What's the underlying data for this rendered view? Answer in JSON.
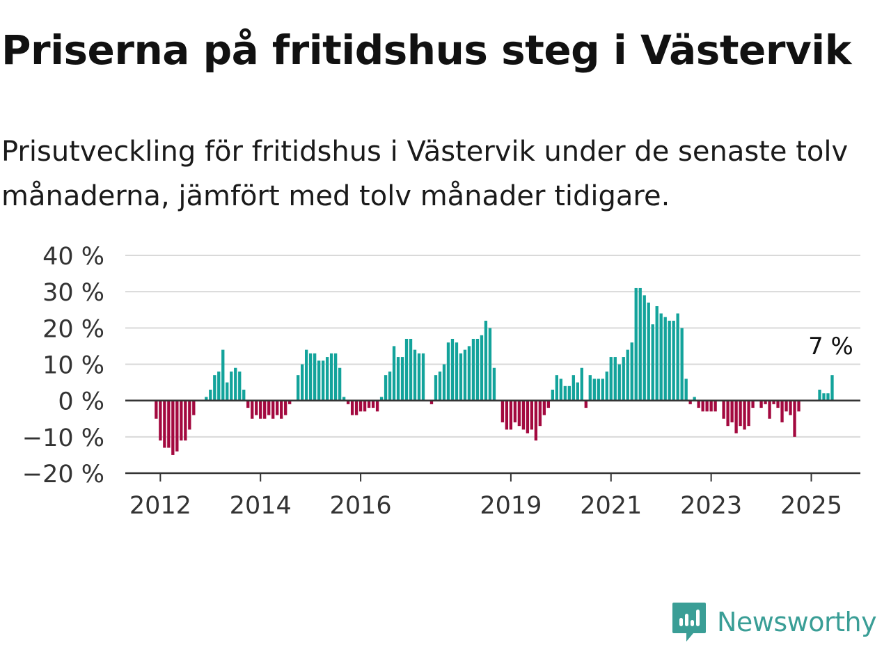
{
  "title": "Priserna på fritidshus steg i Västervik",
  "subtitle": "Prisutveckling för fritidshus i Västervik under de senaste tolv månaderna, jämfört med tolv månader tidigare.",
  "brand": {
    "name": "Newsworthy",
    "color": "#3a9e96",
    "icon": "newsworthy-logo-icon"
  },
  "colors": {
    "positive": "#13a39b",
    "negative": "#a3093f",
    "grid": "#d9d9d9",
    "axis": "#333333"
  },
  "chart_data": {
    "type": "bar",
    "ylim": [
      -20,
      40
    ],
    "yticks": [
      40,
      30,
      20,
      10,
      0,
      -10,
      -20
    ],
    "ytick_labels": [
      "40 %",
      "30 %",
      "20 %",
      "10 %",
      "0 %",
      "−10 %",
      "−20 %"
    ],
    "xticks": [
      {
        "label": "2012",
        "x": 2012.0
      },
      {
        "label": "2014",
        "x": 2014.0
      },
      {
        "label": "2016",
        "x": 2016.0
      },
      {
        "label": "2019",
        "x": 2019.0
      },
      {
        "label": "2021",
        "x": 2021.0
      },
      {
        "label": "2023",
        "x": 2023.0
      },
      {
        "label": "2025",
        "x": 2025.0
      }
    ],
    "x_start": 2011.3,
    "x_end": 2025.98,
    "start": "2011-12",
    "values": [
      -5,
      -11,
      -13,
      -13,
      -15,
      -14,
      -11,
      -11,
      -8,
      -4,
      null,
      null,
      1,
      3,
      7,
      8,
      14,
      5,
      8,
      9,
      8,
      3,
      -2,
      -5,
      -4,
      -5,
      -5,
      -4,
      -5,
      -4,
      -5,
      -4,
      -1,
      null,
      7,
      10,
      14,
      13,
      13,
      11,
      11,
      12,
      13,
      13,
      9,
      1,
      -1,
      -4,
      -4,
      -3,
      -3,
      -2,
      -2,
      -3,
      1,
      7,
      8,
      15,
      12,
      12,
      17,
      17,
      14,
      13,
      13,
      null,
      -1,
      7,
      8,
      10,
      16,
      17,
      16,
      13,
      14,
      15,
      17,
      17,
      18,
      22,
      20,
      9,
      null,
      -6,
      -8,
      -8,
      -6,
      -7,
      -8,
      -9,
      -8,
      -11,
      -7,
      -4,
      -2,
      3,
      7,
      6,
      4,
      4,
      7,
      5,
      9,
      -2,
      7,
      6,
      6,
      6,
      8,
      12,
      12,
      10,
      12,
      14,
      16,
      31,
      31,
      29,
      27,
      21,
      26,
      24,
      23,
      22,
      22,
      24,
      20,
      6,
      -1,
      1,
      -2,
      -3,
      -3,
      -3,
      -3,
      null,
      -5,
      -7,
      -6,
      -9,
      -7,
      -8,
      -7,
      -2,
      null,
      -2,
      -1,
      -5,
      -1,
      -2,
      -6,
      -3,
      -4,
      -10,
      -3,
      null,
      null,
      null,
      null,
      3,
      2,
      2,
      7
    ],
    "annotation": {
      "label": "7 %"
    }
  }
}
